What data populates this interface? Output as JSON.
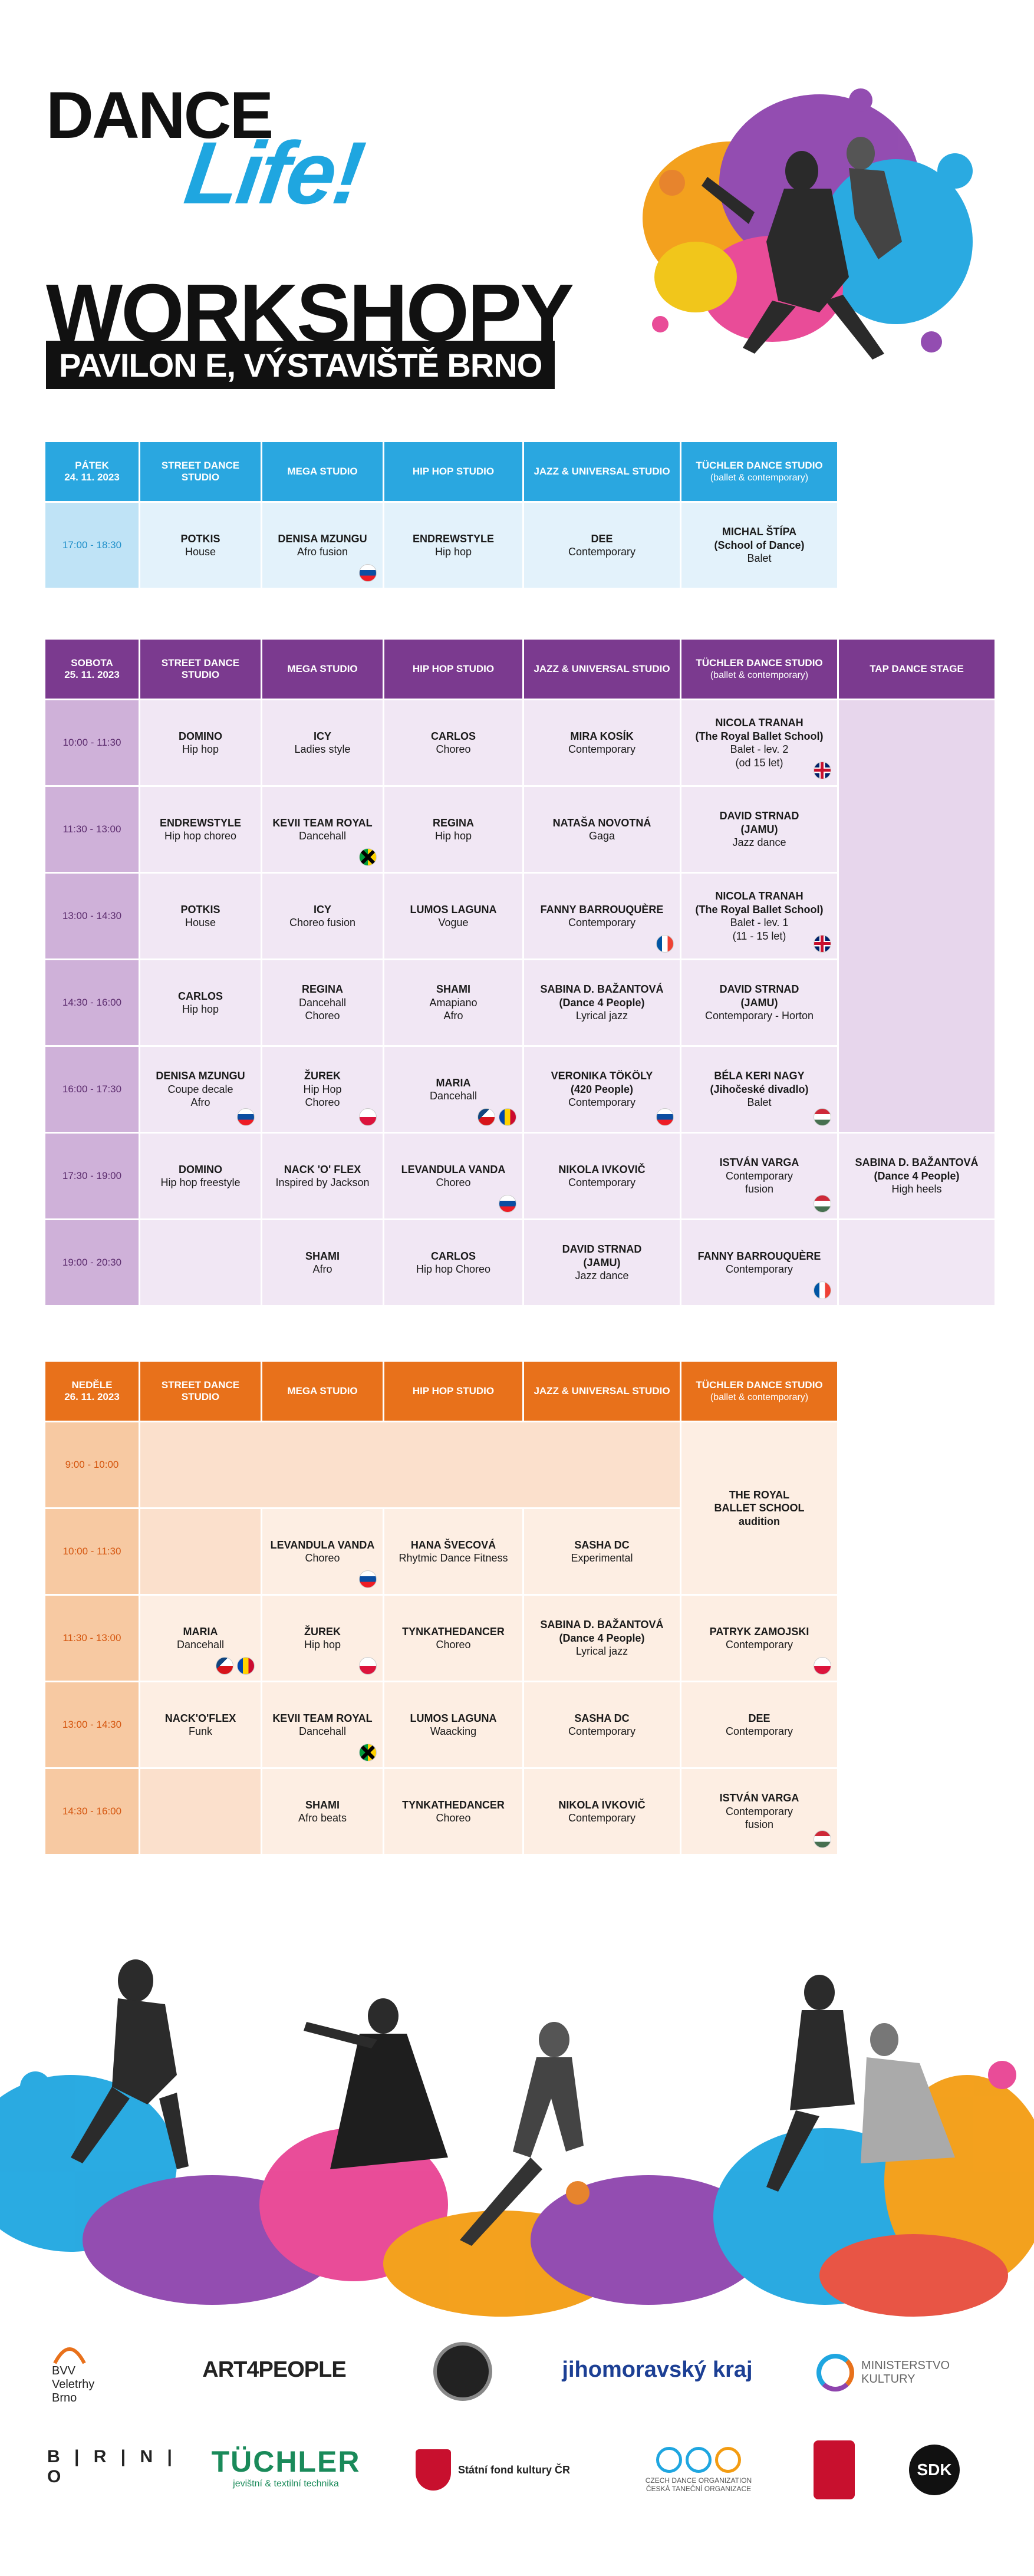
{
  "brand": {
    "logo_line1": "DANCE",
    "logo_line2": "Life!"
  },
  "header": {
    "title": "WORKSHOPY",
    "subtitle": "PAVILON E, VÝSTAVIŠTĚ BRNO"
  },
  "colors": {
    "friday": "#2aa7e0",
    "saturday": "#7b3a8f",
    "sunday": "#e8711b",
    "brand_blue": "#1fa6e0"
  },
  "friday": {
    "day": "PÁTEK",
    "date": "24. 11. 2023",
    "columns": [
      {
        "label": "STREET DANCE STUDIO",
        "sub": ""
      },
      {
        "label": "MEGA STUDIO",
        "sub": ""
      },
      {
        "label": "HIP HOP STUDIO",
        "sub": ""
      },
      {
        "label": "JAZZ & UNIVERSAL STUDIO",
        "sub": ""
      },
      {
        "label": "TÜCHLER DANCE STUDIO",
        "sub": "(ballet & contemporary)"
      }
    ],
    "rows": [
      {
        "time": "17:00 - 18:30",
        "cells": [
          {
            "name": "POTKIS",
            "style": "House"
          },
          {
            "name": "DENISA MZUNGU",
            "style": "Afro fusion",
            "flags": [
              "sk"
            ]
          },
          {
            "name": "ENDREWSTYLE",
            "style": "Hip hop"
          },
          {
            "name": "DEE",
            "style": "Contemporary"
          },
          {
            "name": "MICHAL ŠTÍPA",
            "name2": "(School of Dance)",
            "style": "Balet"
          }
        ]
      }
    ]
  },
  "saturday": {
    "day": "SOBOTA",
    "date": "25. 11. 2023",
    "columns": [
      {
        "label": "STREET DANCE STUDIO",
        "sub": ""
      },
      {
        "label": "MEGA STUDIO",
        "sub": ""
      },
      {
        "label": "HIP HOP STUDIO",
        "sub": ""
      },
      {
        "label": "JAZZ & UNIVERSAL STUDIO",
        "sub": ""
      },
      {
        "label": "TÜCHLER DANCE STUDIO",
        "sub": "(ballet & contemporary)"
      },
      {
        "label": "TAP DANCE STAGE",
        "sub": ""
      }
    ],
    "rows": [
      {
        "time": "10:00 - 11:30",
        "cells": [
          {
            "name": "DOMINO",
            "style": "Hip hop"
          },
          {
            "name": "ICY",
            "style": "Ladies style"
          },
          {
            "name": "CARLOS",
            "style": "Choreo"
          },
          {
            "name": "MIRA KOSÍK",
            "style": "Contemporary"
          },
          {
            "name": "NICOLA TRANAH",
            "name2": "(The Royal Ballet School)",
            "style": "Balet - lev. 2",
            "style2": "(od 15 let)",
            "flags": [
              "gb"
            ]
          }
        ]
      },
      {
        "time": "11:30 - 13:00",
        "cells": [
          {
            "name": "ENDREWSTYLE",
            "style": "Hip hop choreo"
          },
          {
            "name": "KEVII TEAM ROYAL",
            "style": "Dancehall",
            "flags": [
              "jm"
            ]
          },
          {
            "name": "REGINA",
            "style": "Hip hop"
          },
          {
            "name": "NATAŠA NOVOTNÁ",
            "style": "Gaga"
          },
          {
            "name": "DAVID STRNAD",
            "name2": "(JAMU)",
            "style": "Jazz dance"
          }
        ]
      },
      {
        "time": "13:00 - 14:30",
        "cells": [
          {
            "name": "POTKIS",
            "style": "House"
          },
          {
            "name": "ICY",
            "style": "Choreo fusion"
          },
          {
            "name": "LUMOS LAGUNA",
            "style": "Vogue"
          },
          {
            "name": "FANNY BARROUQUÈRE",
            "style": "Contemporary",
            "flags": [
              "fr"
            ]
          },
          {
            "name": "NICOLA TRANAH",
            "name2": "(The Royal Ballet School)",
            "style": "Balet - lev. 1",
            "style2": "(11 - 15 let)",
            "flags": [
              "gb"
            ]
          }
        ]
      },
      {
        "time": "14:30 - 16:00",
        "cells": [
          {
            "name": "CARLOS",
            "style": "Hip hop"
          },
          {
            "name": "REGINA",
            "style": "Dancehall",
            "style2": "Choreo"
          },
          {
            "name": "SHAMI",
            "style": "Amapiano",
            "style2": "Afro"
          },
          {
            "name": "SABINA D. BAŽANTOVÁ",
            "name2": "(Dance 4 People)",
            "style": "Lyrical jazz"
          },
          {
            "name": "DAVID STRNAD",
            "name2": "(JAMU)",
            "style": "Contemporary - Horton"
          }
        ]
      },
      {
        "time": "16:00 - 17:30",
        "cells": [
          {
            "name": "DENISA MZUNGU",
            "style": "Coupe decale",
            "style2": "Afro",
            "flags": [
              "sk"
            ]
          },
          {
            "name": "ŽUREK",
            "style": "Hip Hop",
            "style2": "Choreo",
            "flags": [
              "pl"
            ]
          },
          {
            "name": "MARIA",
            "style": "Dancehall",
            "flags": [
              "cz",
              "md"
            ]
          },
          {
            "name": "VERONIKA TÖKÖLY",
            "name2": "(420 People)",
            "style": "Contemporary",
            "flags": [
              "sk"
            ]
          },
          {
            "name": "BÉLA KERI NAGY",
            "name2": "(Jihočeské divadlo)",
            "style": "Balet",
            "flags": [
              "hu"
            ]
          }
        ]
      },
      {
        "time": "17:30 - 19:00",
        "cells": [
          {
            "name": "DOMINO",
            "style": "Hip hop freestyle"
          },
          {
            "name": "NACK 'O' FLEX",
            "style": "Inspired by Jackson"
          },
          {
            "name": "LEVANDULA VANDA",
            "style": "Choreo",
            "flags": [
              "sk"
            ]
          },
          {
            "name": "NIKOLA IVKOVIČ",
            "style": "Contemporary"
          },
          {
            "name": "ISTVÁN VARGA",
            "style": "Contemporary",
            "style2": "fusion",
            "flags": [
              "hu"
            ]
          },
          {
            "name": "SABINA D. BAŽANTOVÁ",
            "name2": "(Dance 4 People)",
            "style": "High heels"
          }
        ]
      },
      {
        "time": "19:00 - 20:30",
        "cells": [
          {
            "name": "",
            "style": ""
          },
          {
            "name": "SHAMI",
            "style": "Afro"
          },
          {
            "name": "CARLOS",
            "style": "Hip hop Choreo"
          },
          {
            "name": "DAVID STRNAD",
            "name2": "(JAMU)",
            "style": "Jazz dance"
          },
          {
            "name": "FANNY BARROUQUÈRE",
            "style": "Contemporary",
            "flags": [
              "fr"
            ]
          },
          {
            "name": "",
            "style": ""
          }
        ]
      }
    ]
  },
  "sunday": {
    "day": "NEDĚLE",
    "date": "26. 11. 2023",
    "columns": [
      {
        "label": "STREET DANCE STUDIO",
        "sub": ""
      },
      {
        "label": "MEGA STUDIO",
        "sub": ""
      },
      {
        "label": "HIP HOP STUDIO",
        "sub": ""
      },
      {
        "label": "JAZZ & UNIVERSAL STUDIO",
        "sub": ""
      },
      {
        "label": "TÜCHLER DANCE STUDIO",
        "sub": "(ballet & contemporary)"
      }
    ],
    "audition": {
      "line1": "THE ROYAL",
      "line2": "BALLET SCHOOL",
      "line3": "audition"
    },
    "times": [
      "9:00 - 10:00",
      "10:00 - 11:30",
      "11:30 - 13:00",
      "13:00 - 14:30",
      "14:30 - 16:00"
    ],
    "r2": [
      {
        "name": "LEVANDULA VANDA",
        "style": "Choreo",
        "flags": [
          "sk"
        ]
      },
      {
        "name": "HANA ŠVECOVÁ",
        "style": "Rhytmic Dance Fitness"
      },
      {
        "name": "SASHA DC",
        "style": "Experimental"
      }
    ],
    "r3": [
      {
        "name": "MARIA",
        "style": "Dancehall",
        "flags": [
          "cz",
          "md"
        ]
      },
      {
        "name": "ŽUREK",
        "style": "Hip hop",
        "flags": [
          "pl"
        ]
      },
      {
        "name": "TYNKATHEDANCER",
        "style": "Choreo"
      },
      {
        "name": "SABINA D. BAŽANTOVÁ",
        "name2": "(Dance 4 People)",
        "style": "Lyrical jazz"
      },
      {
        "name": "PATRYK ZAMOJSKI",
        "style": "Contemporary",
        "flags": [
          "pl"
        ]
      }
    ],
    "r4": [
      {
        "name": "NACK'O'FLEX",
        "style": "Funk"
      },
      {
        "name": "KEVII TEAM ROYAL",
        "style": "Dancehall",
        "flags": [
          "jm"
        ]
      },
      {
        "name": "LUMOS LAGUNA",
        "style": "Waacking"
      },
      {
        "name": "SASHA DC",
        "style": "Contemporary"
      },
      {
        "name": "DEE",
        "style": "Contemporary"
      }
    ],
    "r5": [
      {
        "name": "SHAMI",
        "style": "Afro beats"
      },
      {
        "name": "TYNKATHEDANCER",
        "style": "Choreo"
      },
      {
        "name": "NIKOLA IVKOVIČ",
        "style": "Contemporary"
      },
      {
        "name": "ISTVÁN VARGA",
        "style": "Contemporary",
        "style2": "fusion",
        "flags": [
          "hu"
        ]
      }
    ]
  },
  "sponsors": {
    "bvv1": "BVV",
    "bvv2": "Veletrhy",
    "bvv3": "Brno",
    "art4people": "ART4PEOPLE",
    "jmk": "jihomoravský kraj",
    "mk1": "MINISTERSTVO",
    "mk2": "KULTURY",
    "brno": "B | R | N | O",
    "tuchler": "TÜCHLER",
    "tuchler_sub": "jevištní & textilní technika",
    "sfk": "Státní fond kultury ČR",
    "cdo1": "CZECH DANCE ORGANIZATION",
    "cdo2": "ČESKÁ TANEČNÍ ORGANIZACE",
    "sdk": "SDK"
  }
}
